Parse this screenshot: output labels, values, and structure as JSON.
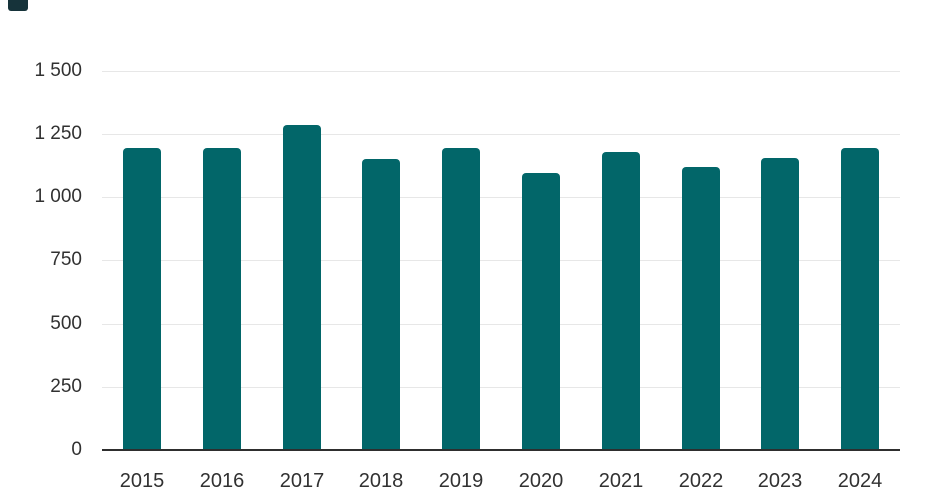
{
  "chart": {
    "bar_color": "#026669",
    "grid_color": "#e7e7e7",
    "axis_color": "#2e2e2e",
    "label_color": "#313131",
    "corner_fragment_color": "#16333a"
  },
  "chart_data": {
    "type": "bar",
    "categories": [
      "2015",
      "2016",
      "2017",
      "2018",
      "2019",
      "2020",
      "2021",
      "2022",
      "2023",
      "2024"
    ],
    "values": [
      1195,
      1195,
      1285,
      1150,
      1195,
      1095,
      1180,
      1120,
      1155,
      1195
    ],
    "title": "",
    "xlabel": "",
    "ylabel": "",
    "ylim": [
      0,
      1500
    ],
    "yticks": [
      0,
      250,
      500,
      750,
      1000,
      1250,
      1500
    ],
    "ytick_labels": [
      "0",
      "250",
      "500",
      "750",
      "1 000",
      "1 250",
      "1 500"
    ],
    "grid": true,
    "legend": false,
    "layout_hint": "single series, vertical bars, gridlines behind bars, baseline axis only"
  }
}
